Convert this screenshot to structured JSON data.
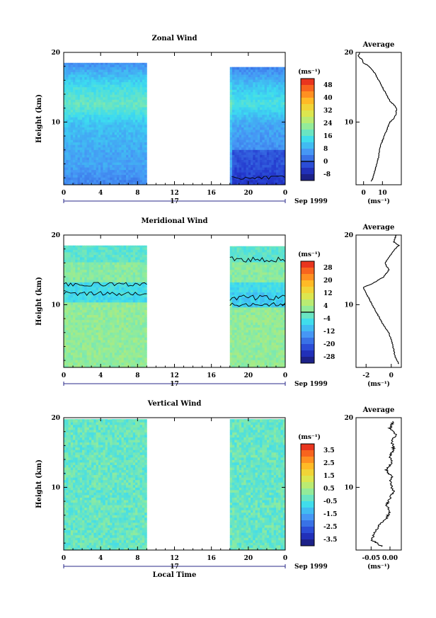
{
  "chart_data": [
    {
      "type": "heatmap",
      "title": "Zonal Wind",
      "xlabel": "",
      "ylabel": "Height (km)",
      "x_ticks": [
        "0",
        "4",
        "8",
        "12",
        "16",
        "20",
        "0"
      ],
      "x_range": [
        0,
        24
      ],
      "y_ticks": [
        "20",
        "10"
      ],
      "y_range": [
        1,
        20
      ],
      "day_label": "17",
      "date_label": "Sep 1999",
      "gap_hours": [
        9,
        18
      ],
      "top_height_km": [
        18.5,
        17.9
      ],
      "colorbar": {
        "unit": "(ms⁻¹)",
        "ticks": [
          "48",
          "40",
          "32",
          "24",
          "16",
          "8",
          "0",
          "-8"
        ],
        "range": [
          -12,
          52
        ],
        "contour_level": 0
      },
      "profile": {
        "title": "Average",
        "x_ticks": [
          "0",
          "10"
        ],
        "x_range": [
          -4,
          20
        ],
        "xlabel": "(ms⁻¹)",
        "y_ticks": [
          "20",
          "10"
        ],
        "height_km": [
          1.5,
          2,
          3,
          4,
          5,
          6,
          7,
          8,
          9,
          10,
          10.5,
          11,
          12,
          12.5,
          13,
          14,
          15,
          16,
          17,
          18,
          18.5,
          19,
          19.5,
          20
        ],
        "values": [
          4,
          5,
          6,
          7,
          8,
          8.5,
          9.5,
          11,
          12.5,
          14,
          16,
          17,
          17.5,
          16,
          14,
          12,
          10,
          8,
          6,
          3,
          0,
          -1,
          -3,
          -2
        ]
      }
    },
    {
      "type": "heatmap",
      "title": "Meridional Wind",
      "xlabel": "",
      "ylabel": "Height (km)",
      "x_ticks": [
        "0",
        "4",
        "8",
        "12",
        "16",
        "20",
        "0"
      ],
      "x_range": [
        0,
        24
      ],
      "y_ticks": [
        "20",
        "10"
      ],
      "y_range": [
        1,
        20
      ],
      "day_label": "17",
      "date_label": "Sep 1999",
      "gap_hours": [
        9,
        18
      ],
      "top_height_km": [
        18.5,
        18.4
      ],
      "colorbar": {
        "unit": "(ms⁻¹)",
        "ticks": [
          "28",
          "20",
          "12",
          "4",
          "-4",
          "-12",
          "-20",
          "-28"
        ],
        "range": [
          -32,
          32
        ],
        "contour_level": 0
      },
      "profile": {
        "title": "Average",
        "x_ticks": [
          "-2",
          "0"
        ],
        "x_range": [
          -2.8,
          0.8
        ],
        "xlabel": "(ms⁻¹)",
        "y_ticks": [
          "20",
          "10"
        ],
        "height_km": [
          1.5,
          2.5,
          3.5,
          5,
          6,
          7,
          8,
          9,
          10,
          11,
          12,
          12.5,
          13,
          14,
          15,
          16,
          17,
          18,
          18.5,
          19,
          20
        ],
        "values": [
          0.6,
          0.3,
          0.2,
          0,
          -0.2,
          -0.6,
          -0.9,
          -1.2,
          -1.5,
          -1.8,
          -2.1,
          -2.2,
          -1.5,
          -0.6,
          -0.2,
          -0.5,
          -0.1,
          0.3,
          0.6,
          0.2,
          0.4
        ]
      }
    },
    {
      "type": "heatmap",
      "title": "Vertical Wind",
      "xlabel": "Local Time",
      "ylabel": "Height (km)",
      "x_ticks": [
        "0",
        "4",
        "8",
        "12",
        "16",
        "20",
        "0"
      ],
      "x_range": [
        0,
        24
      ],
      "y_ticks": [
        "20",
        "10"
      ],
      "y_range": [
        1,
        20
      ],
      "day_label": "17",
      "date_label": "Sep 1999",
      "gap_hours": [
        9,
        18
      ],
      "top_height_km": [
        19.8,
        19.8
      ],
      "colorbar": {
        "unit": "(ms⁻¹)",
        "ticks": [
          "3.5",
          "2.5",
          "1.5",
          "0.5",
          "-0.5",
          "-1.5",
          "-2.5",
          "-3.5"
        ],
        "range": [
          -4,
          4
        ],
        "contour_level": null
      },
      "profile": {
        "title": "Average",
        "x_ticks": [
          "-0.05",
          "0.00"
        ],
        "x_range": [
          -0.09,
          0.03
        ],
        "xlabel": "(ms⁻¹)",
        "y_ticks": [
          "20",
          "10"
        ],
        "height_km": [
          1.5,
          2.5,
          3.5,
          4.5,
          5.5,
          6.5,
          7.5,
          8.5,
          9.5,
          10.5,
          11.5,
          12.5,
          13.5,
          14.5,
          15.5,
          16.5,
          17.5,
          18.5,
          19.5
        ],
        "values": [
          -0.02,
          -0.05,
          -0.04,
          -0.03,
          -0.01,
          0.0,
          -0.01,
          0.0,
          0.01,
          0.0,
          0.005,
          -0.01,
          0.005,
          0.0,
          0.01,
          0.005,
          0.015,
          0.0,
          0.01
        ]
      }
    }
  ]
}
